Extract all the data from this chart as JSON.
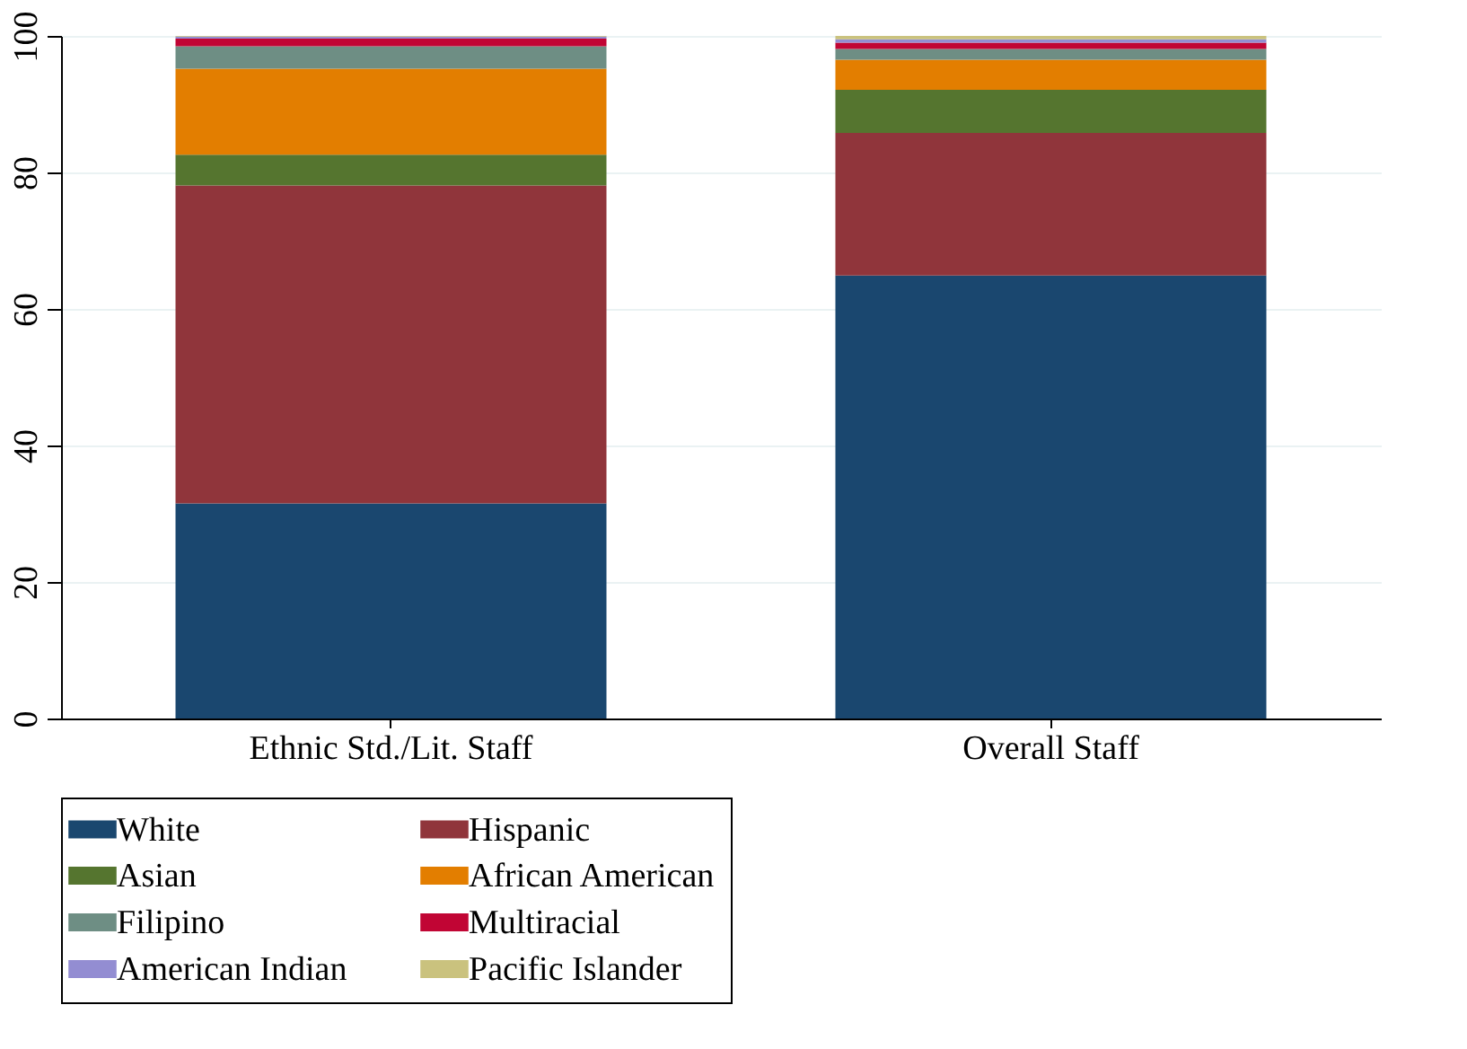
{
  "chart_data": {
    "type": "bar",
    "stacked": true,
    "categories": [
      "Ethnic Std./Lit. Staff",
      "Overall Staff"
    ],
    "series": [
      {
        "name": "White",
        "color": "#1a476f",
        "values": [
          31.5,
          64.9
        ]
      },
      {
        "name": "Hispanic",
        "color": "#90353b",
        "values": [
          46.6,
          20.9
        ]
      },
      {
        "name": "Asian",
        "color": "#55752f",
        "values": [
          4.5,
          6.3
        ]
      },
      {
        "name": "African American",
        "color": "#e37e00",
        "values": [
          12.6,
          4.4
        ]
      },
      {
        "name": "Filipino",
        "color": "#6e8e84",
        "values": [
          3.3,
          1.6
        ]
      },
      {
        "name": "Multiracial",
        "color": "#c10534",
        "values": [
          1.1,
          0.9
        ]
      },
      {
        "name": "American Indian",
        "color": "#938dd2",
        "values": [
          0.3,
          0.5
        ]
      },
      {
        "name": "Pacific Islander",
        "color": "#cac27e",
        "values": [
          0.1,
          0.5
        ]
      }
    ],
    "ylim": [
      0,
      100
    ],
    "yticks": [
      0,
      20,
      40,
      60,
      80,
      100
    ],
    "grid": "y",
    "legend": "bottom"
  }
}
